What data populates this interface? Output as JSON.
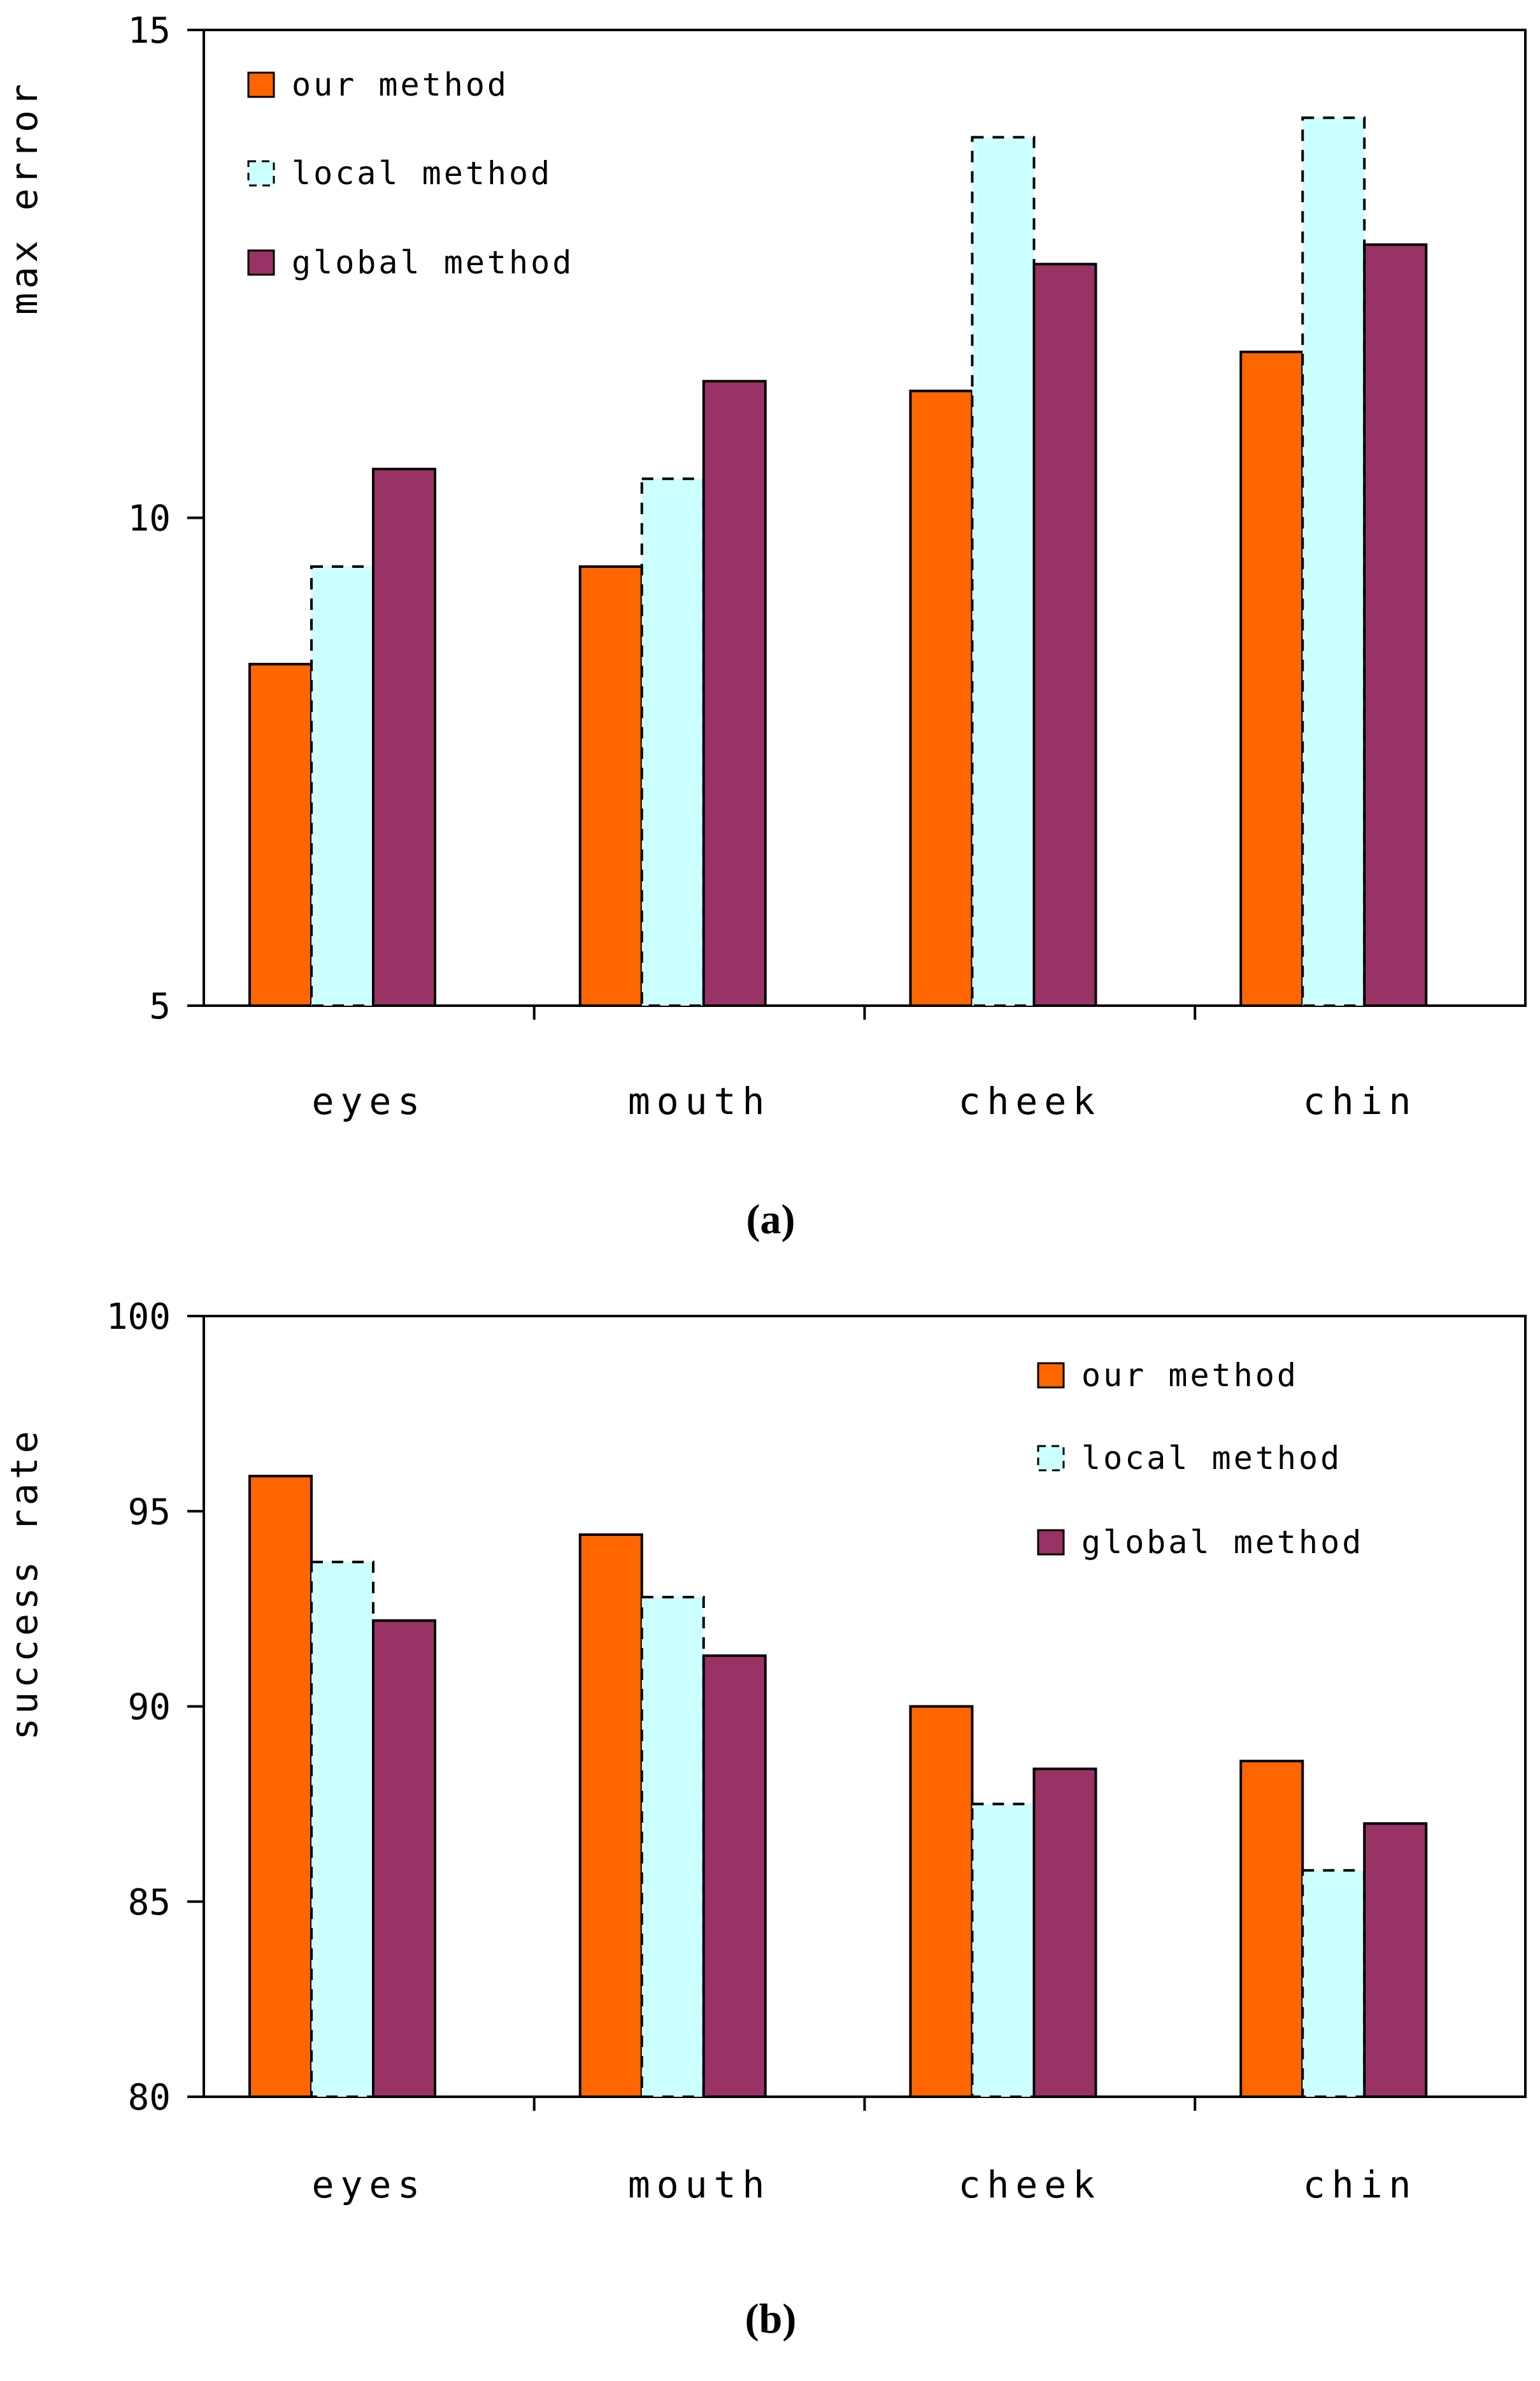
{
  "page": {
    "background": "#ffffff",
    "caption_a": "(a)",
    "caption_b": "(b)"
  },
  "colors": {
    "our_method": "#FF6600",
    "local_method": "#CCFFFF",
    "global_method": "#993366",
    "outline": "#000000"
  },
  "legend": {
    "items": [
      {
        "label": "our method",
        "swatch": "our-method-swatch",
        "color": "#FF6600"
      },
      {
        "label": "local method",
        "swatch": "local-method-swatch",
        "color": "#CCFFFF"
      },
      {
        "label": "global method",
        "swatch": "global-method-swatch",
        "color": "#993366"
      }
    ]
  },
  "chart_data": [
    {
      "id": "a",
      "type": "bar",
      "caption": "(a)",
      "title": "",
      "xlabel": "",
      "ylabel": "max error",
      "ylim": [
        5,
        15
      ],
      "yticks": [
        5,
        10,
        15
      ],
      "ytick_labels": [
        "5",
        "10",
        "15"
      ],
      "categories": [
        "eyes",
        "mouth",
        "cheek",
        "chin"
      ],
      "grid": false,
      "legend_position": "top-left",
      "series": [
        {
          "name": "our method",
          "color": "#FF6600",
          "outline": "solid",
          "values": [
            8.5,
            9.5,
            11.3,
            11.7
          ]
        },
        {
          "name": "local method",
          "color": "#CCFFFF",
          "outline": "dashed",
          "values": [
            9.5,
            10.4,
            13.9,
            14.1
          ]
        },
        {
          "name": "global method",
          "color": "#993366",
          "outline": "solid",
          "values": [
            10.5,
            11.4,
            12.6,
            12.8
          ]
        }
      ]
    },
    {
      "id": "b",
      "type": "bar",
      "caption": "(b)",
      "title": "",
      "xlabel": "",
      "ylabel": "success rate",
      "ylim": [
        80,
        100
      ],
      "yticks": [
        80,
        85,
        90,
        95,
        100
      ],
      "ytick_labels": [
        "80",
        "85",
        "90",
        "95",
        "100"
      ],
      "categories": [
        "eyes",
        "mouth",
        "cheek",
        "chin"
      ],
      "grid": false,
      "legend_position": "top-right",
      "series": [
        {
          "name": "our method",
          "color": "#FF6600",
          "outline": "solid",
          "values": [
            95.9,
            94.4,
            90.0,
            88.6
          ]
        },
        {
          "name": "local method",
          "color": "#CCFFFF",
          "outline": "dashed",
          "values": [
            93.7,
            92.8,
            87.5,
            85.8
          ]
        },
        {
          "name": "global method",
          "color": "#993366",
          "outline": "solid",
          "values": [
            92.2,
            91.3,
            88.4,
            87.0
          ]
        }
      ]
    }
  ]
}
